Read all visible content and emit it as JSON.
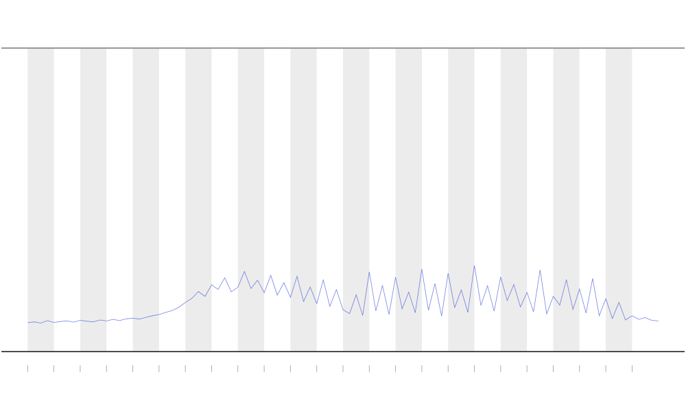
{
  "chart_data": {
    "type": "line",
    "xlim": [
      -1,
      25
    ],
    "ylim": [
      0,
      100
    ],
    "xticks": [
      0,
      1,
      2,
      3,
      4,
      5,
      6,
      7,
      8,
      9,
      10,
      11,
      12,
      13,
      14,
      15,
      16,
      17,
      18,
      19,
      20,
      21,
      22,
      23
    ],
    "bands": [
      [
        0,
        1
      ],
      [
        2,
        3
      ],
      [
        4,
        5
      ],
      [
        6,
        7
      ],
      [
        8,
        9
      ],
      [
        10,
        11
      ],
      [
        12,
        13
      ],
      [
        14,
        15
      ],
      [
        16,
        17
      ],
      [
        18,
        19
      ],
      [
        20,
        21
      ],
      [
        22,
        23
      ]
    ],
    "band_color": "#ececec",
    "x": [
      0,
      0.25,
      0.5,
      0.75,
      1,
      1.25,
      1.5,
      1.75,
      2,
      2.25,
      2.5,
      2.75,
      3,
      3.25,
      3.5,
      3.75,
      4,
      4.25,
      4.5,
      4.75,
      5,
      5.25,
      5.5,
      5.75,
      6,
      6.25,
      6.5,
      6.75,
      7,
      7.25,
      7.5,
      7.75,
      8,
      8.25,
      8.5,
      8.75,
      9,
      9.25,
      9.5,
      9.75,
      10,
      10.25,
      10.5,
      10.75,
      11,
      11.25,
      11.5,
      11.75,
      12,
      12.25,
      12.5,
      12.75,
      13,
      13.25,
      13.5,
      13.75,
      14,
      14.25,
      14.5,
      14.75,
      15,
      15.25,
      15.5,
      15.75,
      16,
      16.25,
      16.5,
      16.75,
      17,
      17.25,
      17.5,
      17.75,
      18,
      18.25,
      18.5,
      18.75,
      19,
      19.25,
      19.5,
      19.75,
      20,
      20.25,
      20.5,
      20.75,
      21,
      21.25,
      21.5,
      21.75,
      22,
      22.25,
      22.5,
      22.75,
      23,
      23.25,
      23.5,
      23.75,
      24
    ],
    "series": [
      {
        "color": "#3b4fd8",
        "values": [
          9.5,
          9.8,
          9.4,
          10.2,
          9.6,
          9.9,
          10.1,
          9.7,
          10.3,
          10,
          9.8,
          10.4,
          10.1,
          10.6,
          10.2,
          10.8,
          11,
          10.7,
          11.3,
          11.8,
          12.2,
          12.9,
          13.5,
          14.6,
          16.2,
          17.5,
          19.8,
          18.2,
          22,
          20.5,
          24.3,
          19.7,
          21.2,
          26.4,
          20.8,
          23.5,
          19.4,
          25.1,
          18.6,
          22.7,
          17.9,
          24.8,
          16.5,
          21.3,
          15.8,
          23.6,
          14.9,
          20.4,
          13.8,
          12.5,
          18.7,
          11.9,
          26.3,
          13.4,
          21.8,
          12.2,
          24.5,
          14.1,
          19.6,
          12.8,
          27.2,
          13.6,
          22.4,
          11.7,
          25.8,
          14.5,
          20.3,
          12.9,
          28.4,
          15.2,
          21.7,
          13.3,
          24.6,
          16.8,
          22.1,
          14.7,
          19.5,
          13.1,
          26.9,
          12.4,
          18.2,
          15.3,
          23.7,
          13.9,
          20.6,
          12.7,
          24.1,
          11.8,
          17.4,
          10.9,
          16.2,
          10.4,
          11.8,
          10.6,
          11.2,
          10.3,
          10.1
        ]
      }
    ]
  }
}
